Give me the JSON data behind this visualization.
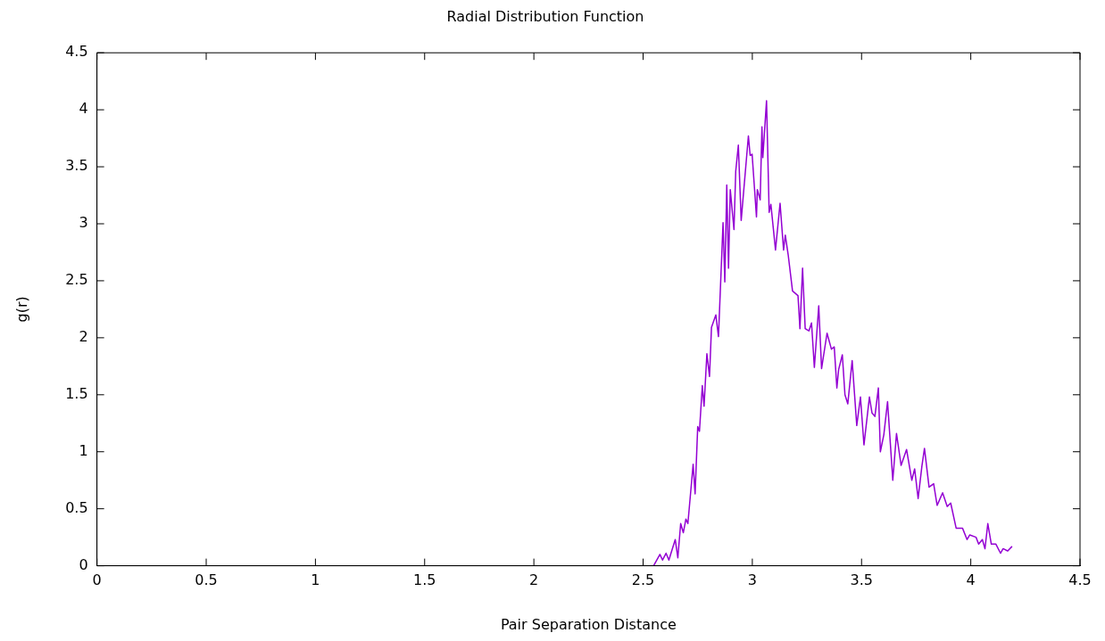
{
  "chart_data": {
    "type": "line",
    "title": "Radial Distribution Function",
    "xlabel": "Pair Separation Distance",
    "ylabel": "g(r)",
    "xlim": [
      0,
      4.5
    ],
    "xticks": [
      0,
      0.5,
      1,
      1.5,
      2,
      2.5,
      3,
      3.5,
      4,
      4.5
    ],
    "ylim": [
      0,
      4.5
    ],
    "yticks": [
      0,
      0.5,
      1,
      1.5,
      2,
      2.5,
      3,
      3.5,
      4,
      4.5
    ],
    "grid": false,
    "legend": false,
    "marker": "none",
    "line_style": "solid",
    "series": [
      {
        "color": "#9400d3",
        "x": [
          2.548,
          2.577,
          2.589,
          2.605,
          2.618,
          2.647,
          2.659,
          2.672,
          2.684,
          2.696,
          2.705,
          2.729,
          2.738,
          2.75,
          2.758,
          2.771,
          2.779,
          2.792,
          2.804,
          2.813,
          2.833,
          2.845,
          2.866,
          2.874,
          2.883,
          2.891,
          2.899,
          2.916,
          2.924,
          2.936,
          2.949,
          2.982,
          2.99,
          2.999,
          3.019,
          3.023,
          3.036,
          3.044,
          3.048,
          3.065,
          3.077,
          3.085,
          3.106,
          3.127,
          3.143,
          3.151,
          3.164,
          3.184,
          3.209,
          3.218,
          3.23,
          3.242,
          3.259,
          3.271,
          3.284,
          3.304,
          3.317,
          3.342,
          3.362,
          3.375,
          3.387,
          3.395,
          3.412,
          3.424,
          3.437,
          3.457,
          3.478,
          3.495,
          3.511,
          3.536,
          3.548,
          3.561,
          3.577,
          3.586,
          3.602,
          3.619,
          3.643,
          3.66,
          3.681,
          3.706,
          3.73,
          3.743,
          3.759,
          3.776,
          3.788,
          3.809,
          3.83,
          3.846,
          3.871,
          3.892,
          3.908,
          3.933,
          3.962,
          3.983,
          3.995,
          4.024,
          4.036,
          4.053,
          4.065,
          4.078,
          4.094,
          4.115,
          4.136,
          4.148,
          4.169,
          4.189
        ],
        "values": [
          0,
          0.1,
          0.05,
          0.11,
          0.05,
          0.23,
          0.07,
          0.37,
          0.29,
          0.41,
          0.37,
          0.89,
          0.63,
          1.22,
          1.18,
          1.58,
          1.4,
          1.86,
          1.66,
          2.09,
          2.2,
          2.01,
          3.01,
          2.49,
          3.34,
          2.61,
          3.3,
          2.95,
          3.46,
          3.69,
          3.03,
          3.77,
          3.6,
          3.61,
          3.06,
          3.3,
          3.21,
          3.85,
          3.58,
          4.08,
          3.1,
          3.17,
          2.77,
          3.18,
          2.77,
          2.9,
          2.73,
          2.41,
          2.37,
          2.08,
          2.61,
          2.08,
          2.06,
          2.13,
          1.74,
          2.28,
          1.73,
          2.04,
          1.9,
          1.92,
          1.56,
          1.72,
          1.85,
          1.5,
          1.42,
          1.8,
          1.23,
          1.48,
          1.06,
          1.48,
          1.34,
          1.31,
          1.56,
          1.0,
          1.15,
          1.44,
          0.75,
          1.16,
          0.88,
          1.02,
          0.75,
          0.85,
          0.59,
          0.87,
          1.03,
          0.69,
          0.72,
          0.53,
          0.64,
          0.52,
          0.55,
          0.33,
          0.33,
          0.23,
          0.27,
          0.25,
          0.19,
          0.23,
          0.15,
          0.37,
          0.19,
          0.19,
          0.11,
          0.15,
          0.13,
          0.17
        ]
      }
    ]
  }
}
